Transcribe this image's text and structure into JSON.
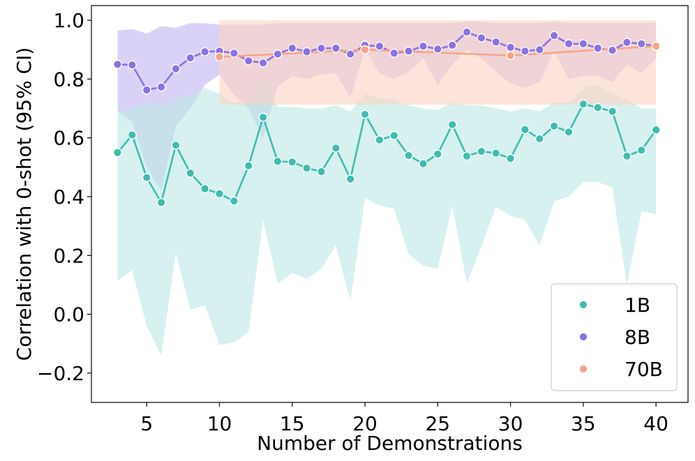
{
  "chart_data": {
    "type": "line",
    "xlabel": "Number of Demonstrations",
    "ylabel": "Correlation with 0-shot (95% CI)",
    "xlim": [
      1.2,
      42.2
    ],
    "ylim": [
      -0.3,
      1.05
    ],
    "xticks": [
      5,
      10,
      15,
      20,
      25,
      30,
      35,
      40
    ],
    "yticks": [
      -0.2,
      0.0,
      0.2,
      0.4,
      0.6,
      0.8,
      1.0
    ],
    "ytick_labels": [
      "−0.2",
      "0.0",
      "0.2",
      "0.4",
      "0.6",
      "0.8",
      "1.0"
    ],
    "legend_position": "lower-right",
    "series": [
      {
        "name": "1B",
        "color": "#3dbdb1",
        "band_color": "#bde9e5",
        "x": [
          3,
          4,
          5,
          6,
          7,
          8,
          9,
          10,
          11,
          12,
          13,
          14,
          15,
          16,
          17,
          18,
          19,
          20,
          21,
          22,
          23,
          24,
          25,
          26,
          27,
          28,
          29,
          30,
          31,
          32,
          33,
          34,
          35,
          36,
          37,
          38,
          39,
          40
        ],
        "y": [
          0.55,
          0.61,
          0.465,
          0.38,
          0.575,
          0.48,
          0.427,
          0.41,
          0.385,
          0.505,
          0.67,
          0.52,
          0.518,
          0.497,
          0.485,
          0.565,
          0.46,
          0.68,
          0.593,
          0.608,
          0.54,
          0.512,
          0.545,
          0.645,
          0.538,
          0.554,
          0.548,
          0.53,
          0.628,
          0.597,
          0.64,
          0.62,
          0.715,
          0.703,
          0.69,
          0.538,
          0.558,
          0.627
        ],
        "lower": [
          0.115,
          0.15,
          -0.04,
          -0.14,
          0.21,
          0.015,
          0.03,
          -0.105,
          -0.095,
          -0.06,
          0.32,
          0.105,
          0.14,
          0.12,
          0.155,
          0.235,
          0.045,
          0.395,
          0.37,
          0.36,
          0.205,
          0.165,
          0.155,
          0.37,
          0.105,
          0.23,
          0.365,
          0.335,
          0.32,
          0.235,
          0.385,
          0.4,
          0.45,
          0.45,
          0.43,
          0.1,
          0.35,
          0.34
        ],
        "upper": [
          0.685,
          0.7,
          0.72,
          0.71,
          0.73,
          0.745,
          0.77,
          0.75,
          0.72,
          0.72,
          0.8,
          0.705,
          0.705,
          0.7,
          0.7,
          0.71,
          0.69,
          0.75,
          0.735,
          0.73,
          0.71,
          0.7,
          0.695,
          0.72,
          0.71,
          0.71,
          0.7,
          0.69,
          0.7,
          0.69,
          0.72,
          0.72,
          0.77,
          0.78,
          0.75,
          0.73,
          0.7,
          0.7
        ]
      },
      {
        "name": "8B",
        "color": "#8a72e3",
        "band_color": "#c3b7f1",
        "x": [
          3,
          4,
          5,
          6,
          7,
          8,
          9,
          10,
          11,
          12,
          13,
          14,
          15,
          16,
          17,
          18,
          19,
          20,
          21,
          22,
          23,
          24,
          25,
          26,
          27,
          28,
          29,
          30,
          31,
          32,
          33,
          34,
          35,
          36,
          37,
          38,
          39,
          40
        ],
        "y": [
          0.85,
          0.848,
          0.763,
          0.773,
          0.835,
          0.872,
          0.893,
          0.895,
          0.888,
          0.862,
          0.855,
          0.885,
          0.905,
          0.893,
          0.905,
          0.905,
          0.885,
          0.915,
          0.912,
          0.888,
          0.895,
          0.912,
          0.902,
          0.915,
          0.96,
          0.94,
          0.926,
          0.908,
          0.895,
          0.9,
          0.948,
          0.92,
          0.92,
          0.905,
          0.898,
          0.925,
          0.92,
          0.912
        ],
        "lower": [
          0.69,
          0.655,
          0.5,
          0.42,
          0.64,
          0.7,
          0.78,
          0.815,
          0.745,
          0.7,
          0.6,
          0.775,
          0.81,
          0.8,
          0.815,
          0.82,
          0.735,
          0.9,
          0.82,
          0.8,
          0.825,
          0.87,
          0.78,
          0.85,
          0.9,
          0.87,
          0.825,
          0.785,
          0.77,
          0.79,
          0.895,
          0.8,
          0.81,
          0.81,
          0.79,
          0.85,
          0.82,
          0.87
        ],
        "upper": [
          0.965,
          0.97,
          0.955,
          0.98,
          0.975,
          0.99,
          0.99,
          0.985,
          0.985,
          0.985,
          0.985,
          0.99,
          0.99,
          0.99,
          0.99,
          0.99,
          0.99,
          0.99,
          0.99,
          0.99,
          0.99,
          0.99,
          0.99,
          0.99,
          0.995,
          0.995,
          0.99,
          0.99,
          0.99,
          0.99,
          0.995,
          0.99,
          0.99,
          0.99,
          0.99,
          0.99,
          0.99,
          0.99
        ]
      },
      {
        "name": "70B",
        "color": "#f5a585",
        "band_color": "#fbd4c3",
        "x": [
          10,
          20,
          30,
          40
        ],
        "y": [
          0.875,
          0.9,
          0.88,
          0.912
        ],
        "lower": [
          0.713,
          0.713,
          0.713,
          0.713
        ],
        "upper": [
          1.0,
          1.0,
          1.0,
          1.0
        ]
      }
    ]
  }
}
